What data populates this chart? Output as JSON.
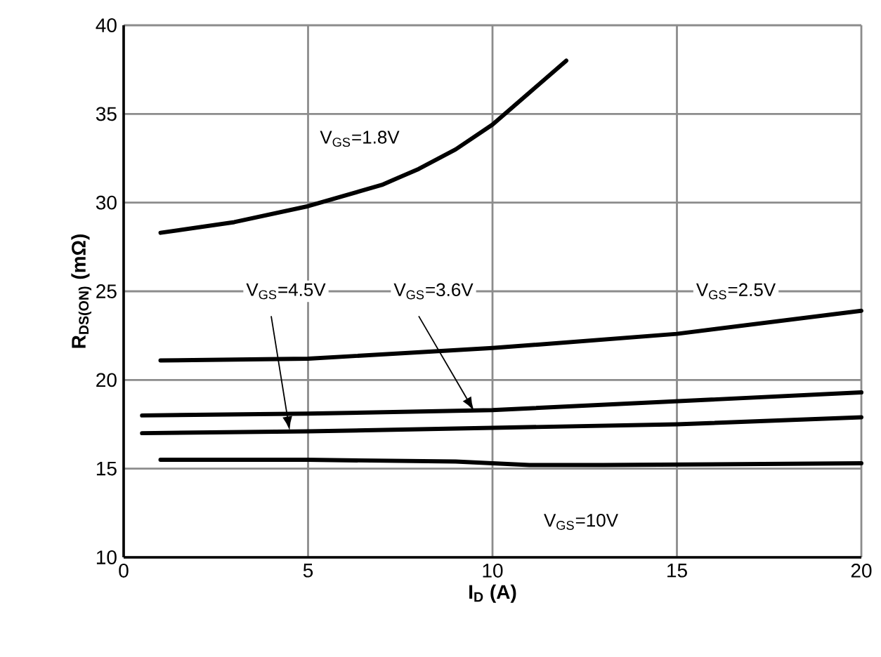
{
  "chart_data": {
    "type": "line",
    "xlabel": "I$_{D}$ (A)",
    "ylabel": "R$_{DS(ON)}$ (mΩ)",
    "xlim": [
      0,
      20
    ],
    "ylim": [
      10,
      40
    ],
    "xticks": [
      0,
      5,
      10,
      15,
      20
    ],
    "yticks": [
      10,
      15,
      20,
      25,
      30,
      35,
      40
    ],
    "grid": true,
    "marker": "none",
    "line_style": "solid",
    "series": [
      {
        "name": "V$_{GS}$=1.8V",
        "color": "#000000",
        "x": [
          1,
          3,
          5,
          7,
          8,
          9,
          10,
          11,
          12
        ],
        "values": [
          28.3,
          28.9,
          29.8,
          31.0,
          31.9,
          33.0,
          34.4,
          36.2,
          38.0
        ]
      },
      {
        "name": "V$_{GS}$=2.5V",
        "color": "#000000",
        "x": [
          1,
          5,
          10,
          15,
          20
        ],
        "values": [
          21.1,
          21.2,
          21.8,
          22.6,
          23.9
        ]
      },
      {
        "name": "V$_{GS}$=3.6V",
        "color": "#000000",
        "x": [
          0.5,
          5,
          10,
          15,
          20
        ],
        "values": [
          18.0,
          18.1,
          18.3,
          18.8,
          19.3
        ]
      },
      {
        "name": "V$_{GS}$=4.5V",
        "color": "#000000",
        "x": [
          0.5,
          5,
          10,
          15,
          20
        ],
        "values": [
          17.0,
          17.1,
          17.3,
          17.5,
          17.9
        ]
      },
      {
        "name": "V$_{GS}$=10V",
        "color": "#000000",
        "x": [
          1,
          5,
          9,
          11,
          13,
          20
        ],
        "values": [
          15.5,
          15.5,
          15.4,
          15.2,
          15.2,
          15.3
        ]
      }
    ]
  }
}
